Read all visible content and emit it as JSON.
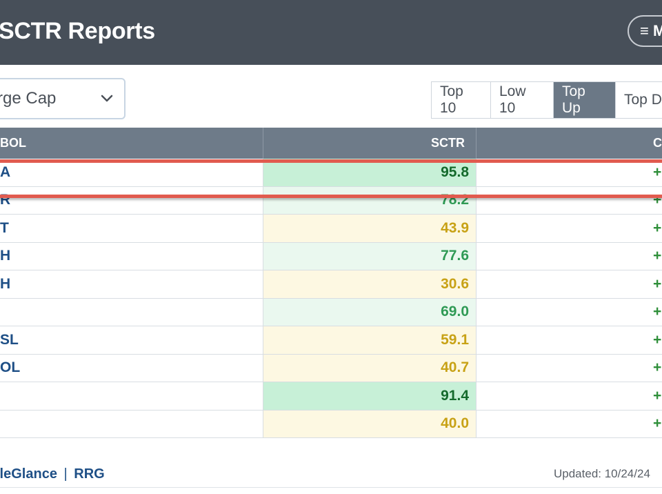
{
  "header": {
    "title": "SCTR Reports",
    "menu_label": "≡ M"
  },
  "group_select": {
    "value": "rge Cap"
  },
  "tabs": [
    {
      "label": "Top 10",
      "active": false
    },
    {
      "label": "Low 10",
      "active": false
    },
    {
      "label": "Top Up",
      "active": true
    },
    {
      "label": "Top Do",
      "active": false
    }
  ],
  "table": {
    "columns": [
      "BOL",
      "SCTR",
      "C"
    ],
    "rows": [
      {
        "symbol": "A",
        "sctr": "95.8",
        "change": "+",
        "tone": "strong"
      },
      {
        "symbol": "R",
        "sctr": "78.2",
        "change": "+",
        "tone": "light"
      },
      {
        "symbol": "T",
        "sctr": "43.9",
        "change": "+",
        "tone": "yellow"
      },
      {
        "symbol": "H",
        "sctr": "77.6",
        "change": "+",
        "tone": "light"
      },
      {
        "symbol": "H",
        "sctr": "30.6",
        "change": "+",
        "tone": "yellow"
      },
      {
        "symbol": "",
        "sctr": "69.0",
        "change": "+",
        "tone": "light"
      },
      {
        "symbol": "SL",
        "sctr": "59.1",
        "change": "+",
        "tone": "yellow"
      },
      {
        "symbol": "OL",
        "sctr": "40.7",
        "change": "+",
        "tone": "yellow"
      },
      {
        "symbol": "",
        "sctr": "91.4",
        "change": "+",
        "tone": "strong"
      },
      {
        "symbol": "",
        "sctr": "40.0",
        "change": "+",
        "tone": "yellow"
      }
    ]
  },
  "footer": {
    "link1": "lleGlance",
    "separator": "|",
    "link2": "RRG",
    "updated": "Updated: 10/24/24"
  },
  "colors": {
    "header_bg": "#474f59",
    "table_header_bg": "#6e7b89",
    "active_tab_bg": "#6b7886",
    "highlight": "#e15b4f",
    "symbol_link": "#1e4f86"
  }
}
